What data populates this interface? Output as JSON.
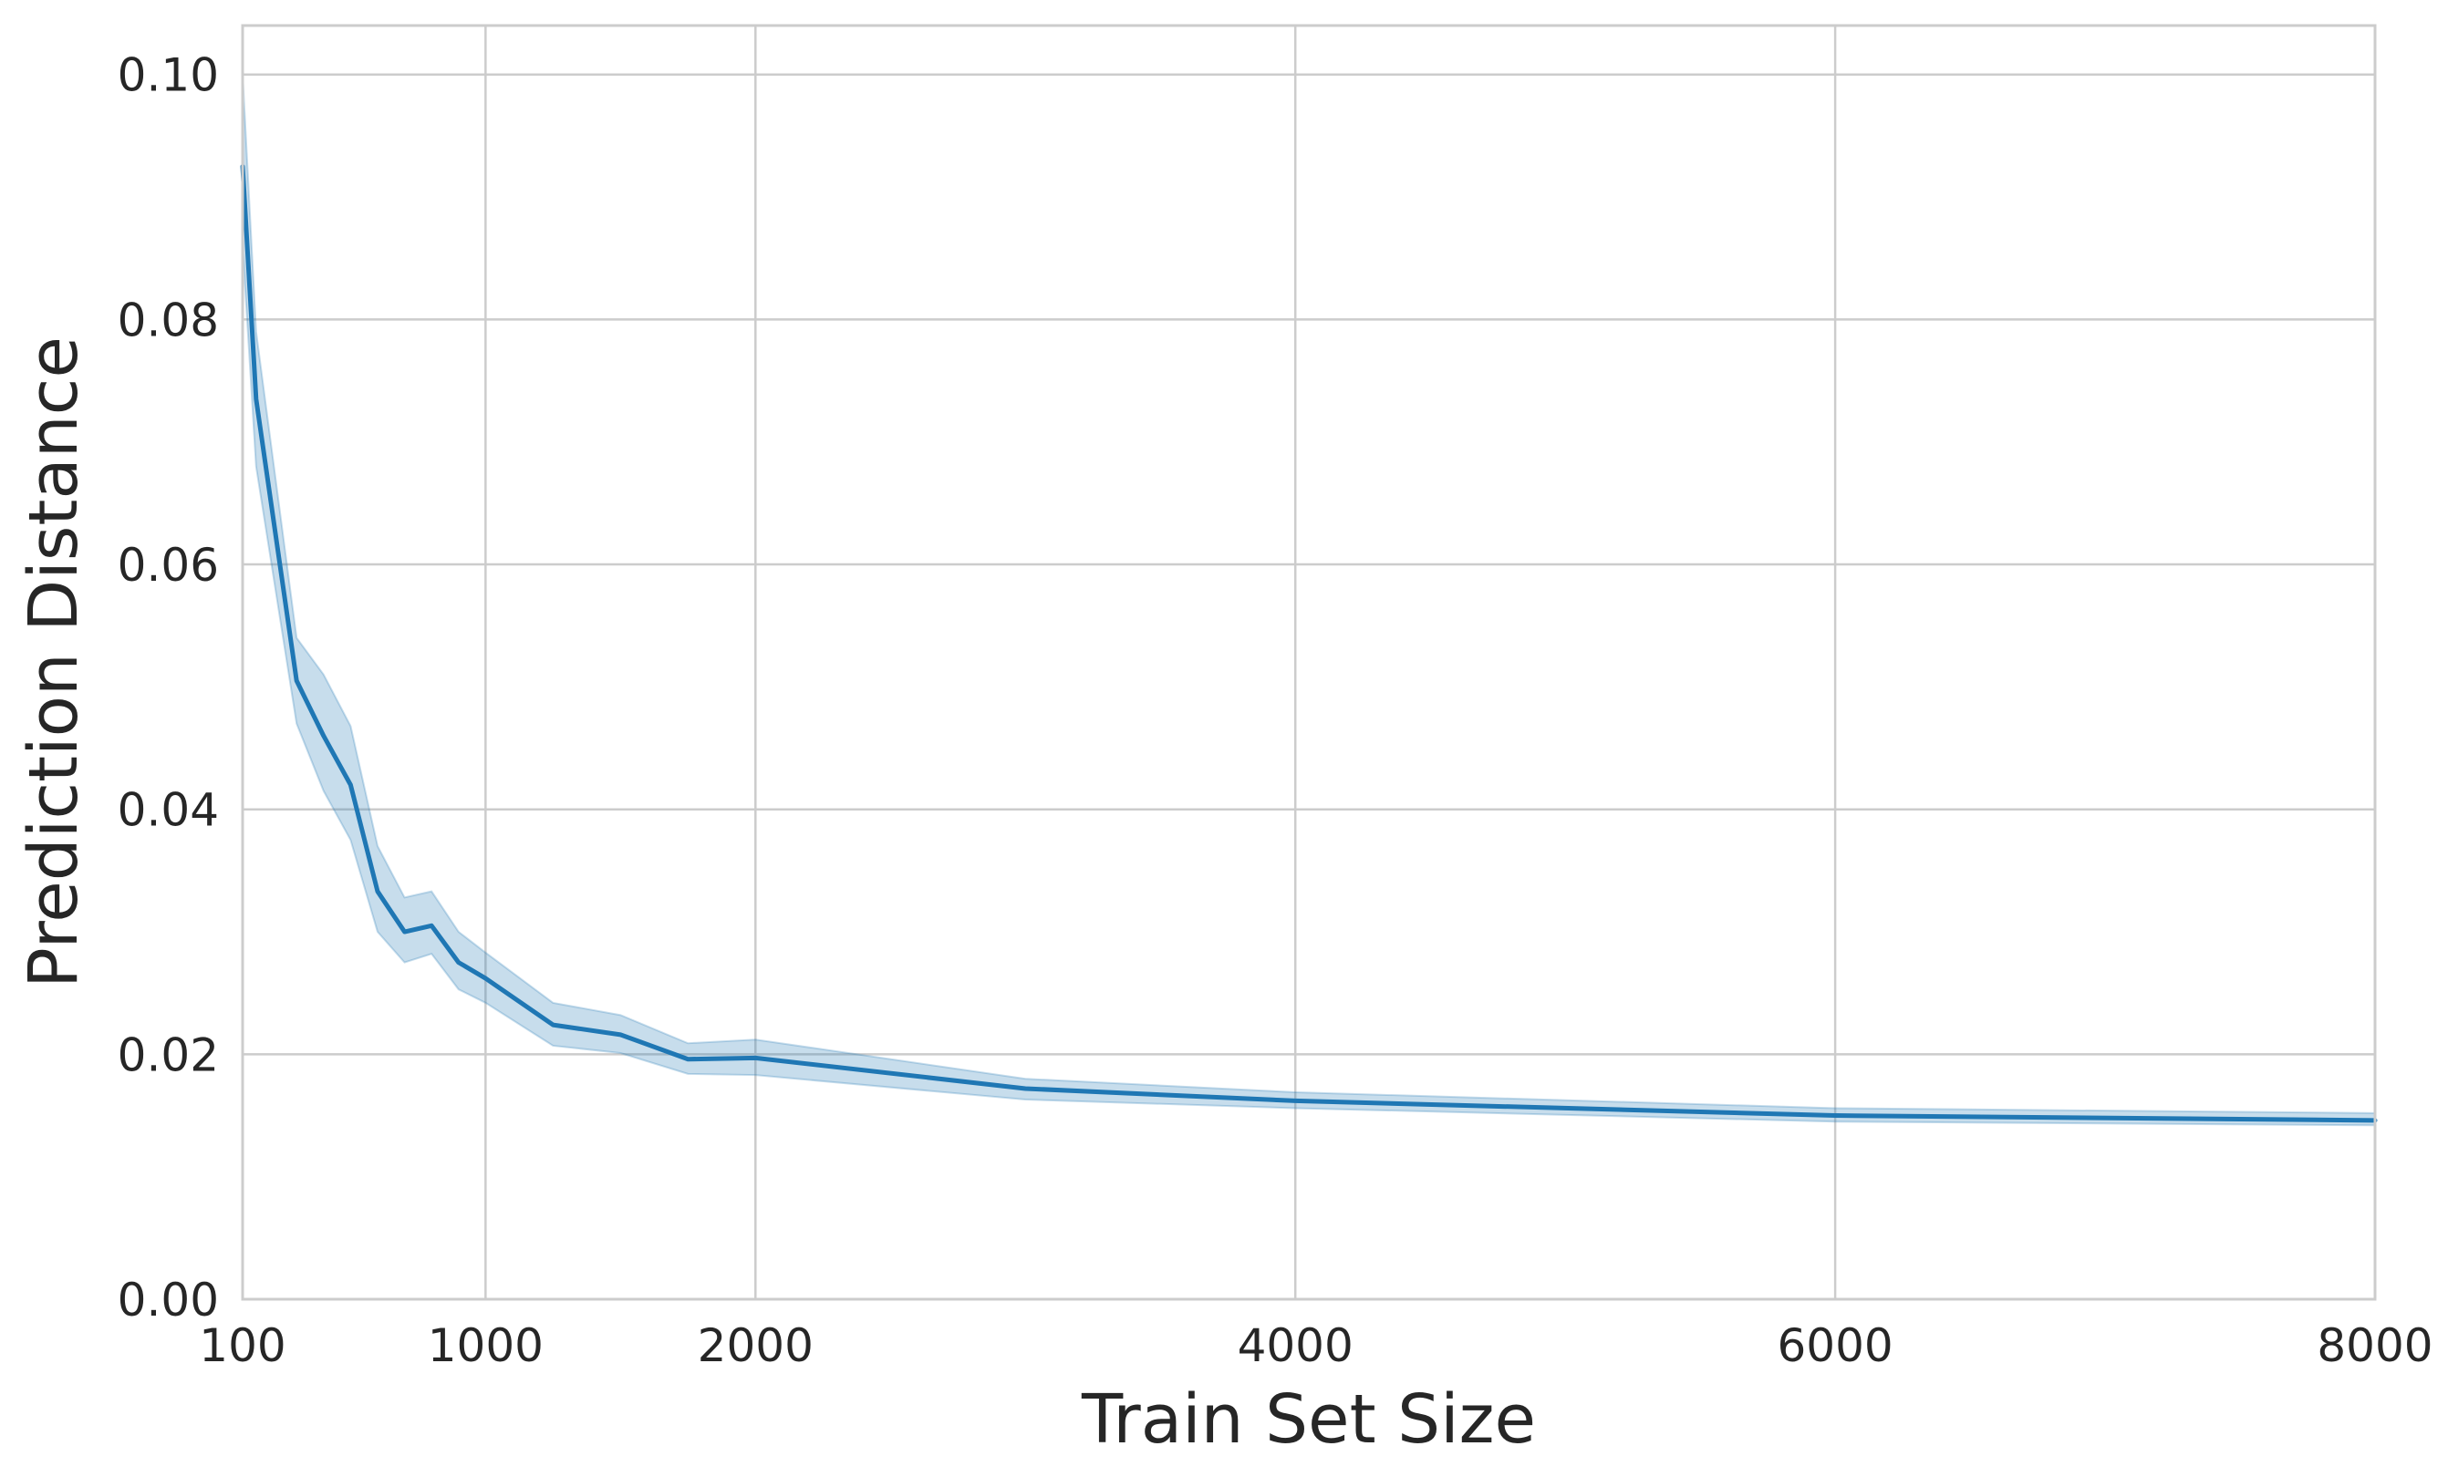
{
  "chart_data": {
    "type": "line",
    "title": "",
    "xlabel": "Train Set Size",
    "ylabel": "Prediction Distance",
    "xlim": [
      100,
      8000
    ],
    "ylim": [
      0,
      0.104
    ],
    "x_ticks": [
      100,
      1000,
      2000,
      4000,
      6000,
      8000
    ],
    "x_tick_labels": [
      "100",
      "1000",
      "2000",
      "4000",
      "6000",
      "8000"
    ],
    "y_ticks": [
      0,
      0.02,
      0.04,
      0.06,
      0.08,
      0.1
    ],
    "y_tick_labels": [
      "0.00",
      "0.02",
      "0.04",
      "0.06",
      "0.08",
      "0.10"
    ],
    "grid": true,
    "legend": "none",
    "series": [
      {
        "color": "#1f77b4",
        "band_color": "#1f77b4",
        "x": [
          100,
          150,
          300,
          400,
          500,
          600,
          700,
          800,
          900,
          1000,
          1250,
          1500,
          1750,
          2000,
          3000,
          4000,
          6000,
          8000
        ],
        "y": [
          0.0925,
          0.0735,
          0.0505,
          0.046,
          0.042,
          0.0333,
          0.03,
          0.0305,
          0.0275,
          0.0262,
          0.0224,
          0.0216,
          0.0196,
          0.0197,
          0.0172,
          0.0162,
          0.015,
          0.0146
        ],
        "lower": [
          0.086,
          0.068,
          0.047,
          0.0415,
          0.0375,
          0.03,
          0.0275,
          0.0282,
          0.0253,
          0.0242,
          0.0207,
          0.0201,
          0.0184,
          0.0183,
          0.0163,
          0.0156,
          0.0145,
          0.0142
        ],
        "upper": [
          0.1,
          0.079,
          0.054,
          0.051,
          0.0468,
          0.037,
          0.0328,
          0.0333,
          0.03,
          0.0283,
          0.0242,
          0.0232,
          0.0209,
          0.0212,
          0.018,
          0.0169,
          0.0156,
          0.0152
        ]
      }
    ]
  }
}
